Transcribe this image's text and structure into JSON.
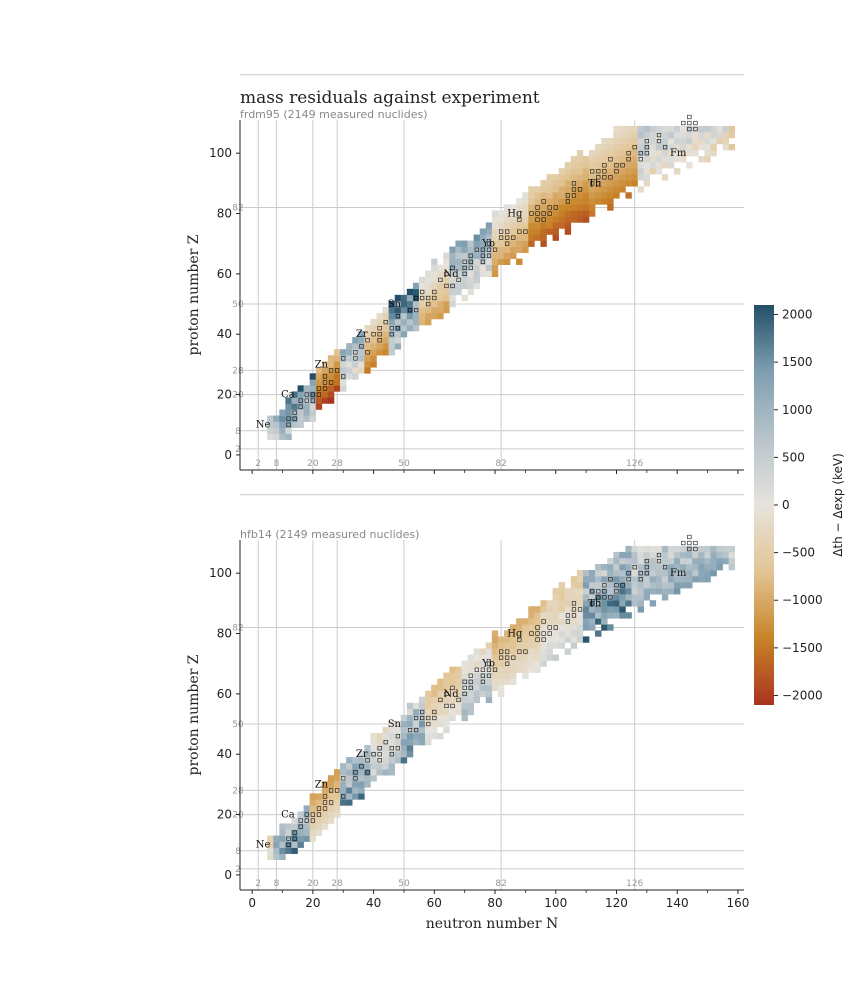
{
  "figure": {
    "title": "mass residuals against experiment"
  },
  "colors": {
    "diverging": [
      "#a83420",
      "#c88428",
      "#e2c595",
      "#e6e3dc",
      "#b8c4cb",
      "#7f9fb1",
      "#224f68"
    ],
    "grid": "#cccccc",
    "magic_text": "#999999",
    "subtitle_text": "#888888"
  },
  "chart_data": [
    {
      "type": "heatmap",
      "name": "frdm95",
      "subtitle": "frdm95  (2149 measured nuclides)",
      "xlabel": "",
      "ylabel": "proton number Z",
      "xlim": [
        -4,
        162
      ],
      "ylim": [
        -5,
        111
      ],
      "xticks": [
        0,
        20,
        40,
        60,
        80,
        100,
        120,
        140,
        160
      ],
      "yticks": [
        0,
        20,
        40,
        60,
        80,
        100
      ],
      "magic_numbers": [
        2,
        8,
        20,
        28,
        50,
        82,
        126
      ],
      "magic_labels": [
        "2",
        "8",
        "20",
        "28",
        "50",
        "82",
        "126"
      ],
      "element_labels": [
        {
          "label": "Ne",
          "N": 8,
          "Z": 10
        },
        {
          "label": "Ca",
          "N": 16,
          "Z": 20
        },
        {
          "label": "Zn",
          "N": 27,
          "Z": 30
        },
        {
          "label": "Zr",
          "N": 40,
          "Z": 40
        },
        {
          "label": "Sn",
          "N": 51,
          "Z": 50
        },
        {
          "label": "Nd",
          "N": 70,
          "Z": 60
        },
        {
          "label": "Yb",
          "N": 82,
          "Z": 70
        },
        {
          "label": "Hg",
          "N": 91,
          "Z": 80
        },
        {
          "label": "Th",
          "N": 117,
          "Z": 90
        },
        {
          "label": "Fm",
          "N": 145,
          "Z": 100
        }
      ],
      "residual_bands": [
        {
          "from": 8,
          "to": 22,
          "value": 1300
        },
        {
          "from": 20,
          "to": 30,
          "value": -1600
        },
        {
          "from": 30,
          "to": 38,
          "value": 700
        },
        {
          "from": 38,
          "to": 46,
          "value": -900
        },
        {
          "from": 46,
          "to": 56,
          "value": 1500
        },
        {
          "from": 56,
          "to": 66,
          "value": -500
        },
        {
          "from": 66,
          "to": 80,
          "value": 800
        },
        {
          "from": 80,
          "to": 92,
          "value": -700
        },
        {
          "from": 92,
          "to": 112,
          "value": -1300
        },
        {
          "from": 112,
          "to": 128,
          "value": -1000
        },
        {
          "from": 128,
          "to": 158,
          "value": 500
        }
      ]
    },
    {
      "type": "heatmap",
      "name": "hfb14",
      "subtitle": "hfb14  (2149 measured nuclides)",
      "xlabel": "neutron number N",
      "ylabel": "proton number Z",
      "xlim": [
        -4,
        162
      ],
      "ylim": [
        -5,
        111
      ],
      "xticks": [
        0,
        20,
        40,
        60,
        80,
        100,
        120,
        140,
        160
      ],
      "yticks": [
        0,
        20,
        40,
        60,
        80,
        100
      ],
      "magic_numbers": [
        2,
        8,
        20,
        28,
        50,
        82,
        126
      ],
      "magic_labels": [
        "2",
        "8",
        "20",
        "28",
        "50",
        "82",
        "126"
      ],
      "element_labels": [
        {
          "label": "Ne",
          "N": 8,
          "Z": 10
        },
        {
          "label": "Ca",
          "N": 16,
          "Z": 20
        },
        {
          "label": "Zn",
          "N": 27,
          "Z": 30
        },
        {
          "label": "Zr",
          "N": 40,
          "Z": 40
        },
        {
          "label": "Sn",
          "N": 51,
          "Z": 50
        },
        {
          "label": "Nd",
          "N": 70,
          "Z": 60
        },
        {
          "label": "Yb",
          "N": 82,
          "Z": 70
        },
        {
          "label": "Hg",
          "N": 91,
          "Z": 80
        },
        {
          "label": "Th",
          "N": 117,
          "Z": 90
        },
        {
          "label": "Fm",
          "N": 145,
          "Z": 100
        }
      ],
      "residual_bands": [
        {
          "from": 8,
          "to": 20,
          "value": 1200
        },
        {
          "from": 20,
          "to": 30,
          "value": -800
        },
        {
          "from": 30,
          "to": 40,
          "value": 1200
        },
        {
          "from": 40,
          "to": 50,
          "value": 300
        },
        {
          "from": 50,
          "to": 58,
          "value": 1100
        },
        {
          "from": 58,
          "to": 70,
          "value": -400
        },
        {
          "from": 70,
          "to": 80,
          "value": 300
        },
        {
          "from": 80,
          "to": 95,
          "value": -600
        },
        {
          "from": 95,
          "to": 110,
          "value": -200
        },
        {
          "from": 110,
          "to": 126,
          "value": 1300
        },
        {
          "from": 126,
          "to": 158,
          "value": 700
        }
      ]
    }
  ],
  "colorbar": {
    "label": "Δth − Δexp  (keV)",
    "range": [
      -2100,
      2100
    ],
    "ticks": [
      2000,
      1500,
      1000,
      500,
      0,
      -500,
      -1000,
      -1500,
      -2000
    ],
    "tick_labels": [
      "2000",
      "1500",
      "1000",
      "500",
      "0",
      "−500",
      "−1000",
      "−1500",
      "−2000"
    ]
  }
}
